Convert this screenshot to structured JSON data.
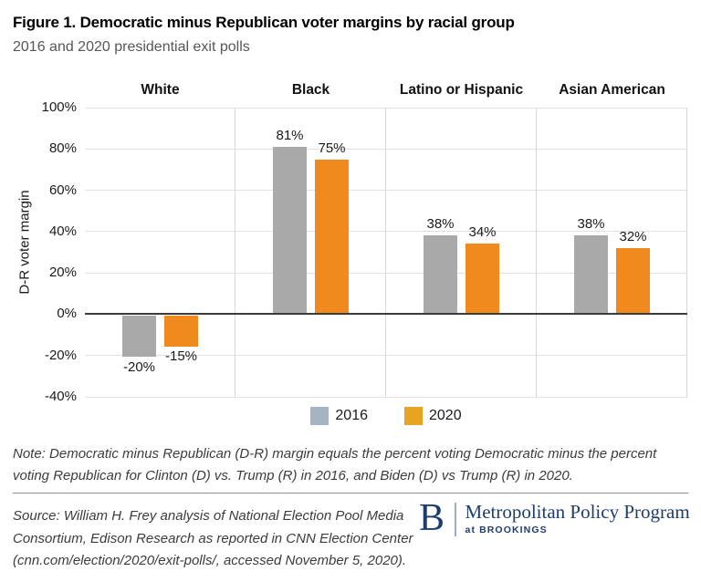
{
  "title": "Figure 1. Democratic minus Republican voter margins by racial group",
  "subtitle": "2016 and 2020 presidential exit polls",
  "chart_data": {
    "type": "bar",
    "categories": [
      "White",
      "Black",
      "Latino or Hispanic",
      "Asian American"
    ],
    "series": [
      {
        "name": "2016",
        "values": [
          -20,
          81,
          38,
          38
        ],
        "bar_color": "#a9a9a9",
        "legend_color": "#a6b4c1"
      },
      {
        "name": "2020",
        "values": [
          -15,
          75,
          34,
          32
        ],
        "bar_color": "#f08a1e",
        "legend_color": "#e8a420"
      }
    ],
    "data_labels": [
      [
        "-20%",
        "81%",
        "38%",
        "38%"
      ],
      [
        "-15%",
        "75%",
        "34%",
        "32%"
      ]
    ],
    "ylabel": "D-R voter margin",
    "yticks": [
      "100%",
      "80%",
      "60%",
      "40%",
      "20%",
      "0%",
      "-20%",
      "-40%"
    ],
    "ytick_values": [
      100,
      80,
      60,
      40,
      20,
      0,
      -20,
      -40
    ],
    "ylim": [
      -40,
      100
    ],
    "grid": true,
    "legend_position": "bottom"
  },
  "note": "Note: Democratic minus Republican (D-R) margin equals the percent voting Democratic minus the percent voting Republican for Clinton (D) vs. Trump (R) in 2016, and Biden (D) vs Trump (R) in 2020.",
  "source": "Source: William H. Frey analysis of National Election Pool Media Consortium, Edison Research as reported in CNN Election Center (cnn.com/election/2020/exit-polls/, accessed November 5, 2020).",
  "logo": {
    "letter": "B",
    "program": "Metropolitan Policy Program",
    "sub": "at BROOKINGS",
    "color": "#1f3d6c"
  },
  "colors": {
    "bar_2016": "#a9a9a9",
    "bar_2020": "#f08a1e",
    "legend_2016": "#a6b4c1",
    "legend_2020": "#e8a420",
    "gridline": "#e2e2e2",
    "zero_line": "#3d3d3d",
    "navy": "#1f3d6c"
  }
}
